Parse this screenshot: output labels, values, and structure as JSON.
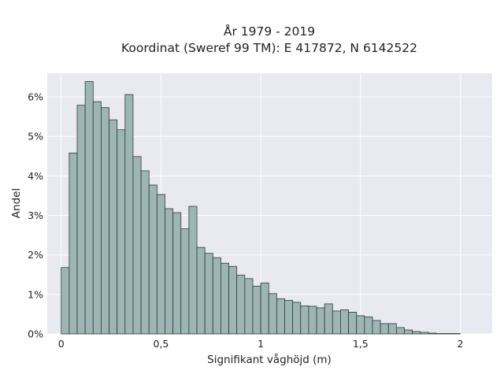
{
  "chart_data": {
    "type": "bar",
    "title_lines": [
      "År 1979 - 2019",
      "Koordinat (Sweref 99 TM): E 417872, N 6142522"
    ],
    "xlabel": "Signifikant våghöjd (m)",
    "ylabel": "Andel",
    "xlim": [
      -0.07,
      2.16
    ],
    "ylim": [
      0,
      6.6
    ],
    "x_ticks": [
      0,
      0.5,
      1,
      1.5,
      2
    ],
    "x_tick_labels": [
      "0",
      "0,5",
      "1",
      "1,5",
      "2"
    ],
    "y_ticks": [
      0,
      1,
      2,
      3,
      4,
      5,
      6
    ],
    "y_tick_labels": [
      "0%",
      "1%",
      "2%",
      "3%",
      "4%",
      "5%",
      "6%"
    ],
    "bin_start": 0,
    "bin_width": 0.04,
    "values": [
      1.68,
      4.58,
      5.79,
      6.39,
      5.88,
      5.73,
      5.42,
      5.17,
      6.06,
      4.49,
      4.13,
      3.77,
      3.53,
      3.17,
      3.07,
      2.66,
      3.23,
      2.19,
      2.04,
      1.93,
      1.79,
      1.71,
      1.49,
      1.4,
      1.21,
      1.29,
      1.02,
      0.89,
      0.85,
      0.8,
      0.71,
      0.7,
      0.66,
      0.76,
      0.58,
      0.61,
      0.55,
      0.46,
      0.43,
      0.34,
      0.26,
      0.26,
      0.16,
      0.1,
      0.06,
      0.04,
      0.02,
      0.01,
      0.01,
      0.01
    ],
    "grid": true,
    "colors": {
      "background": "#e9e9f1",
      "bar_fill": "#9db5b3",
      "bar_edge": "#2e3b3a",
      "grid": "#ffffff"
    }
  }
}
